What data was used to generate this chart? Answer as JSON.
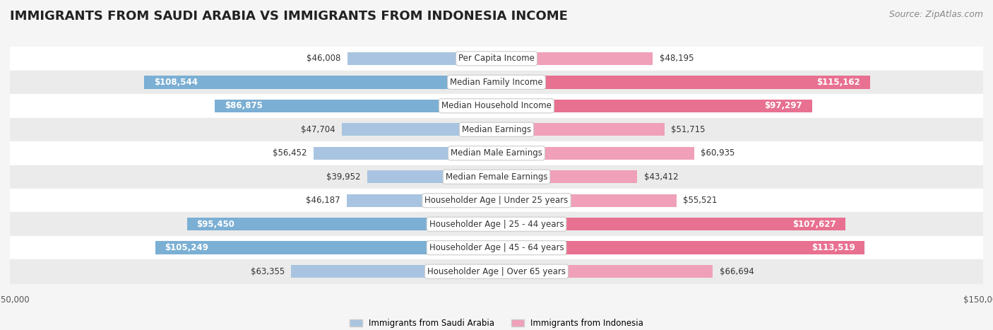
{
  "title": "IMMIGRANTS FROM SAUDI ARABIA VS IMMIGRANTS FROM INDONESIA INCOME",
  "source": "Source: ZipAtlas.com",
  "categories": [
    "Per Capita Income",
    "Median Family Income",
    "Median Household Income",
    "Median Earnings",
    "Median Male Earnings",
    "Median Female Earnings",
    "Householder Age | Under 25 years",
    "Householder Age | 25 - 44 years",
    "Householder Age | 45 - 64 years",
    "Householder Age | Over 65 years"
  ],
  "saudi_values": [
    46008,
    108544,
    86875,
    47704,
    56452,
    39952,
    46187,
    95450,
    105249,
    63355
  ],
  "indonesia_values": [
    48195,
    115162,
    97297,
    51715,
    60935,
    43412,
    55521,
    107627,
    113519,
    66694
  ],
  "saudi_labels": [
    "$46,008",
    "$108,544",
    "$86,875",
    "$47,704",
    "$56,452",
    "$39,952",
    "$46,187",
    "$95,450",
    "$105,249",
    "$63,355"
  ],
  "indonesia_labels": [
    "$48,195",
    "$115,162",
    "$97,297",
    "$51,715",
    "$60,935",
    "$43,412",
    "$55,521",
    "$107,627",
    "$113,519",
    "$66,694"
  ],
  "saudi_color": "#a8c4e0",
  "saudi_color_strong": "#7bafd4",
  "indonesia_color": "#f0a0b8",
  "indonesia_color_strong": "#e8607a",
  "max_value": 150000,
  "background_color": "#f5f5f5",
  "row_bg_light": "#ffffff",
  "row_bg_dark": "#f0f0f0",
  "legend_saudi": "Immigrants from Saudi Arabia",
  "legend_indonesia": "Immigrants from Indonesia",
  "title_fontsize": 13,
  "source_fontsize": 9,
  "label_fontsize": 8.5,
  "category_fontsize": 8.5,
  "axis_label_fontsize": 8.5
}
